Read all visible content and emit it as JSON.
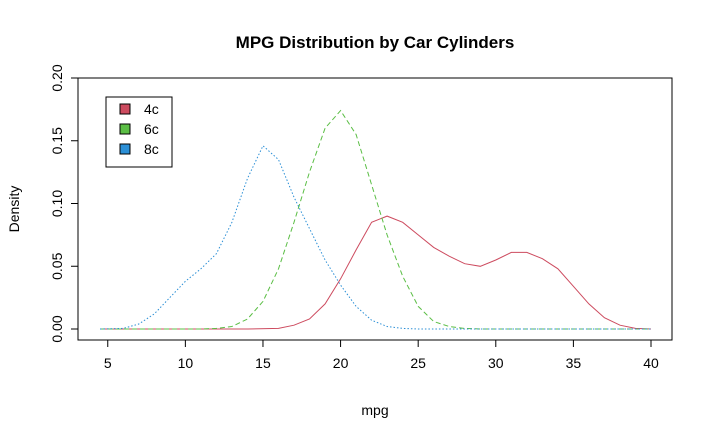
{
  "chart_data": {
    "type": "line",
    "title": "MPG Distribution by Car Cylinders",
    "xlabel": "mpg",
    "ylabel": "Density",
    "xlim": [
      4.5,
      40
    ],
    "ylim": [
      0,
      0.2
    ],
    "xticks": [
      5,
      10,
      15,
      20,
      25,
      30,
      35,
      40
    ],
    "yticks": [
      "0.00",
      "0.05",
      "0.10",
      "0.15",
      "0.20"
    ],
    "grid": false,
    "legend_position": "top-left",
    "series": [
      {
        "name": "4c",
        "color": "#CD4B5F",
        "style": "solid",
        "x": [
          4.5,
          12,
          14,
          16,
          17,
          18,
          19,
          20,
          21,
          22,
          23,
          24,
          25,
          26,
          27,
          28,
          29,
          30,
          31,
          32,
          33,
          34,
          35,
          36,
          37,
          38,
          39,
          40
        ],
        "y": [
          0,
          0,
          0,
          0.0005,
          0.003,
          0.008,
          0.02,
          0.04,
          0.063,
          0.085,
          0.09,
          0.085,
          0.075,
          0.065,
          0.058,
          0.052,
          0.05,
          0.055,
          0.061,
          0.061,
          0.056,
          0.048,
          0.034,
          0.02,
          0.009,
          0.003,
          0.0005,
          0
        ]
      },
      {
        "name": "6c",
        "color": "#5BBE45",
        "style": "dashed",
        "x": [
          4.5,
          11,
          12,
          13,
          14,
          15,
          16,
          17,
          18,
          19,
          20,
          21,
          22,
          23,
          24,
          25,
          26,
          27,
          28,
          29,
          40
        ],
        "y": [
          0,
          0,
          0.0005,
          0.002,
          0.008,
          0.022,
          0.048,
          0.085,
          0.125,
          0.16,
          0.174,
          0.155,
          0.115,
          0.075,
          0.042,
          0.018,
          0.006,
          0.002,
          0.0005,
          0,
          0
        ]
      },
      {
        "name": "8c",
        "color": "#2B8FD6",
        "style": "dotted",
        "x": [
          4.5,
          6,
          7,
          8,
          9,
          10,
          11,
          12,
          13,
          14,
          15,
          16,
          17,
          18,
          19,
          20,
          21,
          22,
          23,
          24,
          25,
          26,
          40
        ],
        "y": [
          0,
          0.0005,
          0.004,
          0.012,
          0.025,
          0.038,
          0.048,
          0.06,
          0.085,
          0.12,
          0.146,
          0.135,
          0.105,
          0.08,
          0.055,
          0.035,
          0.018,
          0.007,
          0.002,
          0.0005,
          0,
          0,
          0
        ]
      }
    ]
  }
}
